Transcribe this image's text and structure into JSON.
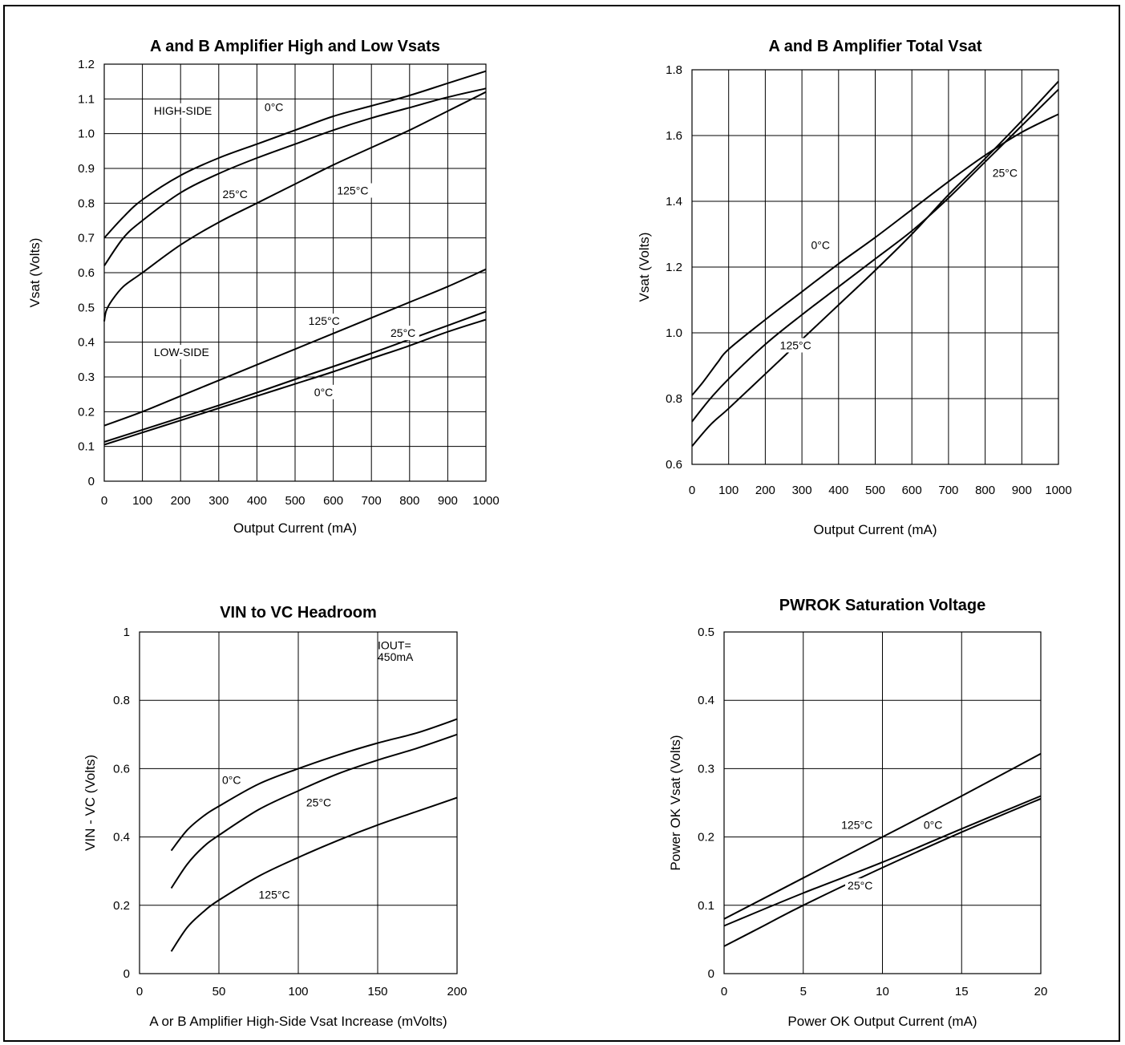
{
  "chart_data": [
    {
      "type": "line",
      "title": "A and B Amplifier High and Low Vsats",
      "xlabel": "Output Current (mA)",
      "ylabel": "Vsat (Volts)",
      "xlim": [
        0,
        1000
      ],
      "ylim": [
        0,
        1.2
      ],
      "grid": true,
      "xticks": [
        0,
        100,
        200,
        300,
        400,
        500,
        600,
        700,
        800,
        900,
        1000
      ],
      "xtick_labels": [
        "0",
        "100",
        "200",
        "300",
        "400",
        "500",
        "600",
        "700",
        "800",
        "900",
        "1000"
      ],
      "yticks": [
        0,
        0.1,
        0.2,
        0.3,
        0.4,
        0.5,
        0.6,
        0.7,
        0.8,
        0.9,
        1.0,
        1.1,
        1.2
      ],
      "ytick_labels": [
        "0",
        "0.1",
        "0.2",
        "0.3",
        "0.4",
        "0.5",
        "0.6",
        "0.7",
        "0.8",
        "0.9",
        "1.0",
        "1.1",
        "1.2"
      ],
      "series": [
        {
          "name": "HIGH-SIDE 0°C",
          "x": [
            0,
            50,
            100,
            200,
            300,
            400,
            500,
            600,
            700,
            800,
            900,
            1000
          ],
          "y": [
            0.7,
            0.76,
            0.81,
            0.88,
            0.93,
            0.97,
            1.01,
            1.05,
            1.08,
            1.11,
            1.145,
            1.18
          ]
        },
        {
          "name": "HIGH-SIDE 25°C",
          "x": [
            0,
            50,
            100,
            200,
            300,
            400,
            500,
            600,
            700,
            800,
            900,
            1000
          ],
          "y": [
            0.62,
            0.7,
            0.75,
            0.83,
            0.885,
            0.93,
            0.97,
            1.01,
            1.045,
            1.075,
            1.105,
            1.13
          ]
        },
        {
          "name": "HIGH-SIDE 125°C",
          "x": [
            0,
            5,
            20,
            50,
            100,
            200,
            300,
            400,
            500,
            600,
            700,
            800,
            900,
            1000
          ],
          "y": [
            0.46,
            0.49,
            0.52,
            0.56,
            0.6,
            0.68,
            0.745,
            0.8,
            0.855,
            0.91,
            0.96,
            1.01,
            1.065,
            1.12
          ]
        },
        {
          "name": "LOW-SIDE 125°C",
          "x": [
            0,
            100,
            200,
            300,
            400,
            500,
            600,
            700,
            800,
            900,
            1000
          ],
          "y": [
            0.16,
            0.2,
            0.245,
            0.29,
            0.335,
            0.38,
            0.425,
            0.47,
            0.515,
            0.56,
            0.61
          ]
        },
        {
          "name": "LOW-SIDE 25°C",
          "x": [
            0,
            100,
            200,
            300,
            400,
            500,
            600,
            700,
            800,
            900,
            1000
          ],
          "y": [
            0.113,
            0.148,
            0.183,
            0.218,
            0.255,
            0.293,
            0.33,
            0.368,
            0.408,
            0.448,
            0.488
          ]
        },
        {
          "name": "LOW-SIDE 0°C",
          "x": [
            0,
            100,
            200,
            300,
            400,
            500,
            600,
            700,
            800,
            900,
            1000
          ],
          "y": [
            0.105,
            0.14,
            0.175,
            0.21,
            0.245,
            0.28,
            0.315,
            0.353,
            0.39,
            0.43,
            0.465
          ]
        }
      ],
      "annotations": [
        {
          "text": "HIGH-SIDE",
          "x": 130,
          "y": 1.055
        },
        {
          "text": "0°C",
          "x": 420,
          "y": 1.065
        },
        {
          "text": "25°C",
          "x": 310,
          "y": 0.815
        },
        {
          "text": "125°C",
          "x": 610,
          "y": 0.825
        },
        {
          "text": "125°C",
          "x": 535,
          "y": 0.45
        },
        {
          "text": "25°C",
          "x": 750,
          "y": 0.415
        },
        {
          "text": "LOW-SIDE",
          "x": 130,
          "y": 0.36
        },
        {
          "text": "0°C",
          "x": 550,
          "y": 0.245
        }
      ]
    },
    {
      "type": "line",
      "title": "A and B Amplifier Total Vsat",
      "xlabel": "Output Current (mA)",
      "ylabel": "Vsat (Volts)",
      "xlim": [
        0,
        1000
      ],
      "ylim": [
        0.6,
        1.8
      ],
      "grid": true,
      "xticks": [
        0,
        100,
        200,
        300,
        400,
        500,
        600,
        700,
        800,
        900,
        1000
      ],
      "xtick_labels": [
        "0",
        "100",
        "200",
        "300",
        "400",
        "500",
        "600",
        "700",
        "800",
        "900",
        "1000"
      ],
      "yticks": [
        0.6,
        0.8,
        1.0,
        1.2,
        1.4,
        1.6,
        1.8
      ],
      "ytick_labels": [
        "0.6",
        "0.8",
        "1.0",
        "1.2",
        "1.4",
        "1.6",
        "1.8"
      ],
      "series": [
        {
          "name": "0°C",
          "x": [
            0,
            30,
            70,
            100,
            200,
            300,
            400,
            500,
            600,
            700,
            800,
            900,
            1000
          ],
          "y": [
            0.81,
            0.85,
            0.91,
            0.95,
            1.04,
            1.125,
            1.21,
            1.29,
            1.375,
            1.46,
            1.54,
            1.61,
            1.665
          ]
        },
        {
          "name": "25°C",
          "x": [
            0,
            50,
            100,
            200,
            300,
            400,
            500,
            600,
            700,
            800,
            900,
            1000
          ],
          "y": [
            0.73,
            0.8,
            0.86,
            0.965,
            1.055,
            1.14,
            1.225,
            1.31,
            1.41,
            1.52,
            1.63,
            1.74
          ]
        },
        {
          "name": "125°C",
          "x": [
            0,
            50,
            100,
            200,
            300,
            400,
            500,
            600,
            700,
            800,
            900,
            1000
          ],
          "y": [
            0.655,
            0.72,
            0.77,
            0.875,
            0.98,
            1.085,
            1.19,
            1.3,
            1.42,
            1.53,
            1.645,
            1.765
          ]
        }
      ],
      "annotations": [
        {
          "text": "0°C",
          "x": 325,
          "y": 1.255
        },
        {
          "text": "25°C",
          "x": 820,
          "y": 1.475
        },
        {
          "text": "125°C",
          "x": 240,
          "y": 0.95
        }
      ]
    },
    {
      "type": "line",
      "title": "VIN to VC Headroom",
      "xlabel": "A or B Amplifier High-Side Vsat Increase (mVolts)",
      "ylabel": "VIN - VC (Volts)",
      "xlim": [
        0,
        200
      ],
      "ylim": [
        0,
        1
      ],
      "grid": true,
      "xticks": [
        0,
        50,
        100,
        150,
        200
      ],
      "xtick_labels": [
        "0",
        "50",
        "100",
        "150",
        "200"
      ],
      "yticks": [
        0,
        0.2,
        0.4,
        0.6,
        0.8,
        1
      ],
      "ytick_labels": [
        "0",
        "0.2",
        "0.4",
        "0.6",
        "0.8",
        "1"
      ],
      "series": [
        {
          "name": "0°C",
          "x": [
            20,
            30,
            40,
            50,
            75,
            100,
            125,
            150,
            175,
            200
          ],
          "y": [
            0.36,
            0.42,
            0.46,
            0.49,
            0.555,
            0.6,
            0.64,
            0.675,
            0.705,
            0.745
          ]
        },
        {
          "name": "25°C",
          "x": [
            20,
            30,
            40,
            50,
            75,
            100,
            125,
            150,
            175,
            200
          ],
          "y": [
            0.25,
            0.32,
            0.37,
            0.405,
            0.48,
            0.535,
            0.585,
            0.625,
            0.66,
            0.7
          ]
        },
        {
          "name": "125°C",
          "x": [
            20,
            30,
            40,
            50,
            75,
            100,
            125,
            150,
            175,
            200
          ],
          "y": [
            0.065,
            0.135,
            0.18,
            0.215,
            0.285,
            0.34,
            0.39,
            0.435,
            0.475,
            0.515
          ]
        }
      ],
      "annotations": [
        {
          "text": "0°C",
          "x": 52,
          "y": 0.555
        },
        {
          "text": "25°C",
          "x": 105,
          "y": 0.49
        },
        {
          "text": "125°C",
          "x": 75,
          "y": 0.22
        },
        {
          "text": "IOUT=",
          "x": 150,
          "y": 0.95
        },
        {
          "text": "450mA",
          "x": 150,
          "y": 0.915
        }
      ]
    },
    {
      "type": "line",
      "title": "PWROK Saturation Voltage",
      "xlabel": "Power OK Output Current (mA)",
      "ylabel": "Power OK Vsat (Volts)",
      "xlim": [
        0,
        20
      ],
      "ylim": [
        0,
        0.5
      ],
      "grid": true,
      "xticks": [
        0,
        5,
        10,
        15,
        20
      ],
      "xtick_labels": [
        "0",
        "5",
        "10",
        "15",
        "20"
      ],
      "yticks": [
        0,
        0.1,
        0.2,
        0.3,
        0.4,
        0.5
      ],
      "ytick_labels": [
        "0",
        "0.1",
        "0.2",
        "0.3",
        "0.4",
        "0.5"
      ],
      "series": [
        {
          "name": "125°C",
          "x": [
            0,
            5,
            10,
            15,
            20
          ],
          "y": [
            0.08,
            0.14,
            0.2,
            0.26,
            0.322
          ]
        },
        {
          "name": "0°C",
          "x": [
            0,
            5,
            10,
            15,
            20
          ],
          "y": [
            0.07,
            0.118,
            0.163,
            0.212,
            0.26
          ]
        },
        {
          "name": "25°C",
          "x": [
            0,
            2.5,
            5,
            10,
            15,
            20
          ],
          "y": [
            0.04,
            0.07,
            0.1,
            0.155,
            0.207,
            0.256
          ]
        }
      ],
      "annotations": [
        {
          "text": "125°C",
          "x": 7.4,
          "y": 0.212
        },
        {
          "text": "0°C",
          "x": 12.6,
          "y": 0.212
        },
        {
          "text": "25°C",
          "x": 7.8,
          "y": 0.123
        }
      ]
    }
  ]
}
